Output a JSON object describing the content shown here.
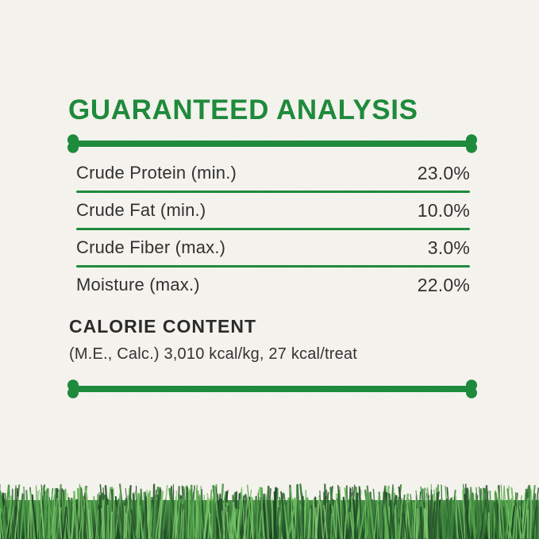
{
  "colors": {
    "green": "#1e8a3c",
    "ink": "#313131",
    "paper": "#f6f4ee"
  },
  "title": "GUARANTEED ANALYSIS",
  "analysis": {
    "rows": [
      {
        "label": "Crude Protein (min.)",
        "value": "23.0%"
      },
      {
        "label": "Crude Fat (min.)",
        "value": "10.0%"
      },
      {
        "label": "Crude Fiber (max.)",
        "value": "3.0%"
      },
      {
        "label": "Moisture (max.)",
        "value": "22.0%"
      }
    ]
  },
  "calorie_content": {
    "heading": "CALORIE CONTENT",
    "details": "(M.E., Calc.) 3,010 kcal/kg, 27 kcal/treat"
  },
  "decorations": {
    "divider_icon": "bone-divider",
    "footer_image": "grass",
    "grass_palette": [
      "#24512a",
      "#2c6331",
      "#357538",
      "#3e853d",
      "#489344",
      "#53a24c",
      "#5fae54",
      "#6cba5e",
      "#2f5c31",
      "#1f4725"
    ]
  }
}
